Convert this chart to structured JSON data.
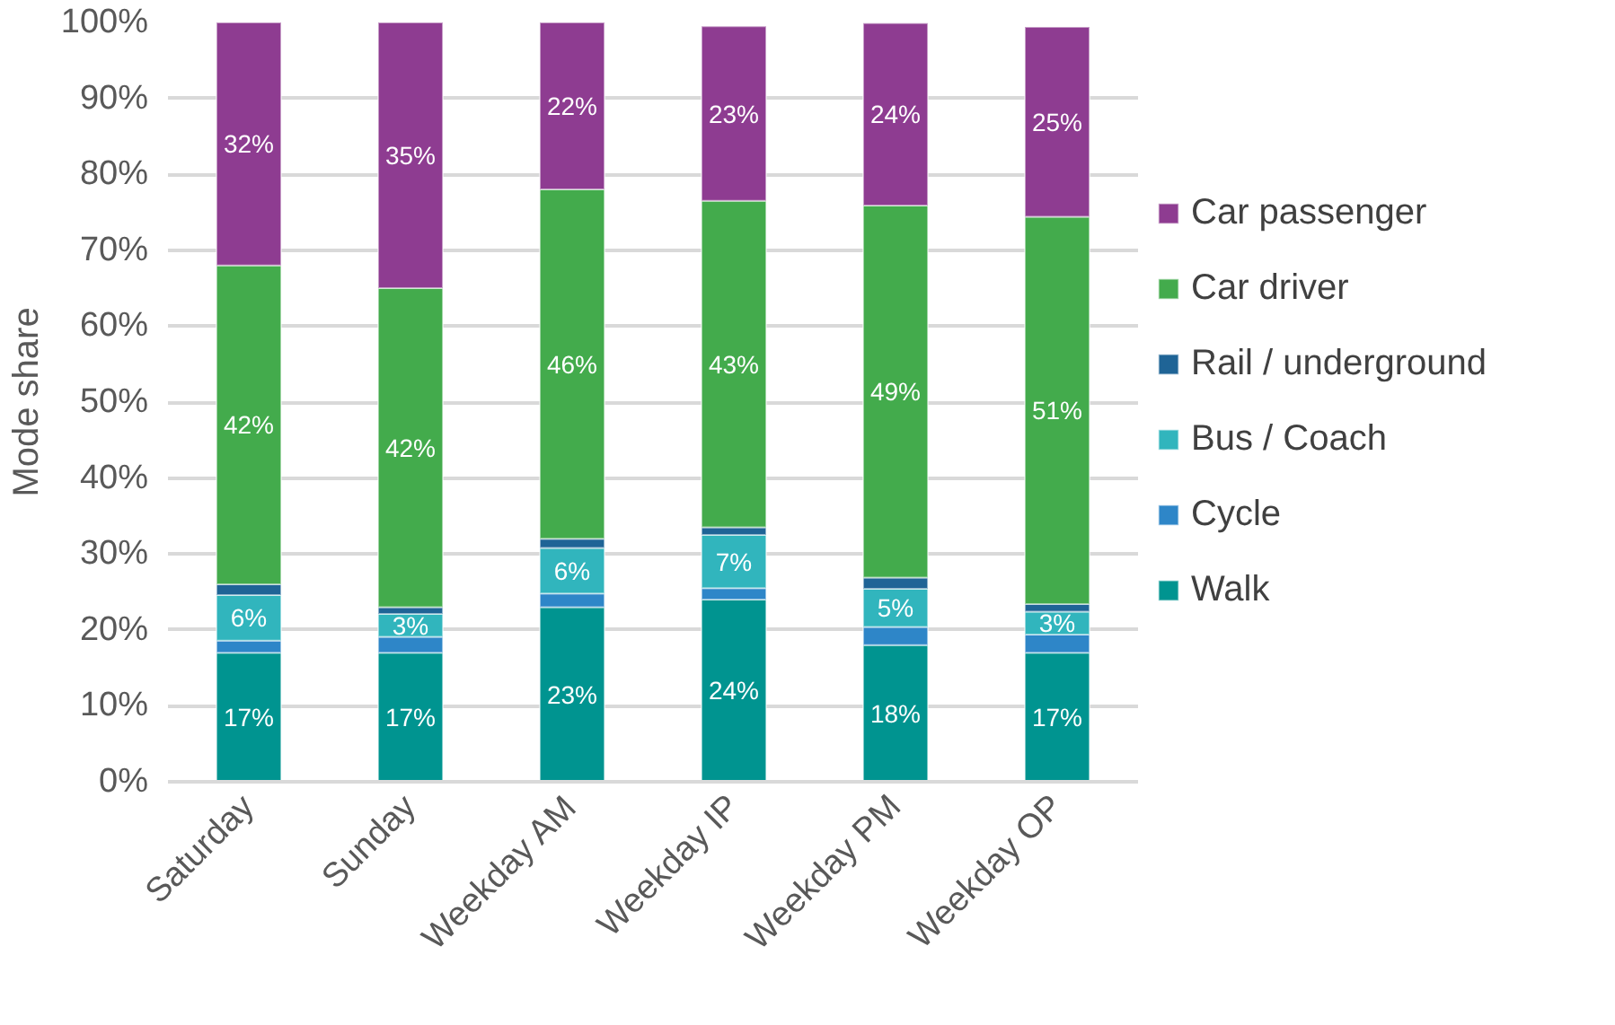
{
  "chart_data": {
    "type": "bar",
    "stacked": true,
    "ylabel": "Mode share",
    "categories": [
      "Saturday",
      "Sunday",
      "Weekday AM",
      "Weekday IP",
      "Weekday PM",
      "Weekday OP"
    ],
    "series": [
      {
        "name": "Walk",
        "color": "#009490",
        "values": [
          17,
          17,
          23,
          24,
          18,
          17
        ],
        "value_labels": [
          "17%",
          "17%",
          "23%",
          "24%",
          "18%",
          "17%"
        ]
      },
      {
        "name": "Cycle",
        "color": "#2e86c8",
        "values": [
          1.6,
          2.1,
          1.8,
          1.5,
          2.4,
          2.4
        ],
        "value_labels": [
          null,
          null,
          null,
          null,
          null,
          null
        ]
      },
      {
        "name": "Bus / Coach",
        "color": "#31b5bd",
        "values": [
          6,
          3,
          6,
          7,
          5,
          3
        ],
        "value_labels": [
          "6%",
          "3%",
          "6%",
          "7%",
          "5%",
          "3%"
        ]
      },
      {
        "name": "Rail / underground",
        "color": "#1f6496",
        "values": [
          1.4,
          0.9,
          1.2,
          1,
          1.5,
          1
        ],
        "value_labels": [
          null,
          null,
          null,
          null,
          null,
          null
        ]
      },
      {
        "name": "Car driver",
        "color": "#43ab4c",
        "values": [
          42,
          42,
          46,
          43,
          49,
          51
        ],
        "value_labels": [
          "42%",
          "42%",
          "46%",
          "43%",
          "49%",
          "51%"
        ]
      },
      {
        "name": "Car passenger",
        "color": "#8e3c91",
        "values": [
          32,
          35,
          22,
          23,
          24,
          25
        ],
        "value_labels": [
          "32%",
          "35%",
          "22%",
          "23%",
          "24%",
          "25%"
        ]
      }
    ],
    "ylim": [
      0,
      100
    ],
    "yticks": [
      {
        "value": 0,
        "label": "0%"
      },
      {
        "value": 10,
        "label": "10%"
      },
      {
        "value": 20,
        "label": "20%"
      },
      {
        "value": 30,
        "label": "30%"
      },
      {
        "value": 40,
        "label": "40%"
      },
      {
        "value": 50,
        "label": "50%"
      },
      {
        "value": 60,
        "label": "60%"
      },
      {
        "value": 70,
        "label": "70%"
      },
      {
        "value": 80,
        "label": "80%"
      },
      {
        "value": 90,
        "label": "90%"
      },
      {
        "value": 100,
        "label": "100%"
      }
    ],
    "grid": "y",
    "legend": "right"
  }
}
